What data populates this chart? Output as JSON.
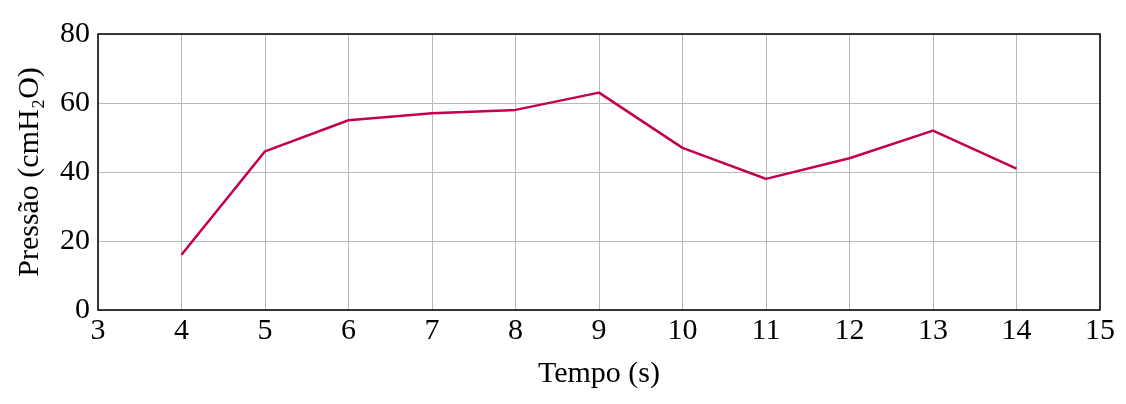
{
  "chart_data": {
    "type": "line",
    "xlabel": "Tempo (s)",
    "ylabel": "Pressão (cmH₂O)",
    "x": [
      4,
      5,
      6,
      7,
      8,
      9,
      10,
      11,
      12,
      13,
      14
    ],
    "series": [
      {
        "color": "#c2004f",
        "values": [
          16,
          46,
          55,
          57,
          58,
          63,
          47,
          38,
          44,
          52,
          41
        ]
      }
    ],
    "xlim": [
      3,
      15
    ],
    "xticks": [
      3,
      4,
      5,
      6,
      7,
      8,
      9,
      10,
      11,
      12,
      13,
      14,
      15
    ],
    "ylim": [
      0,
      80
    ],
    "yticks": [
      0,
      20,
      40,
      60,
      80
    ],
    "grid": true,
    "marker": "none",
    "line_style": "solid",
    "legend": false
  }
}
